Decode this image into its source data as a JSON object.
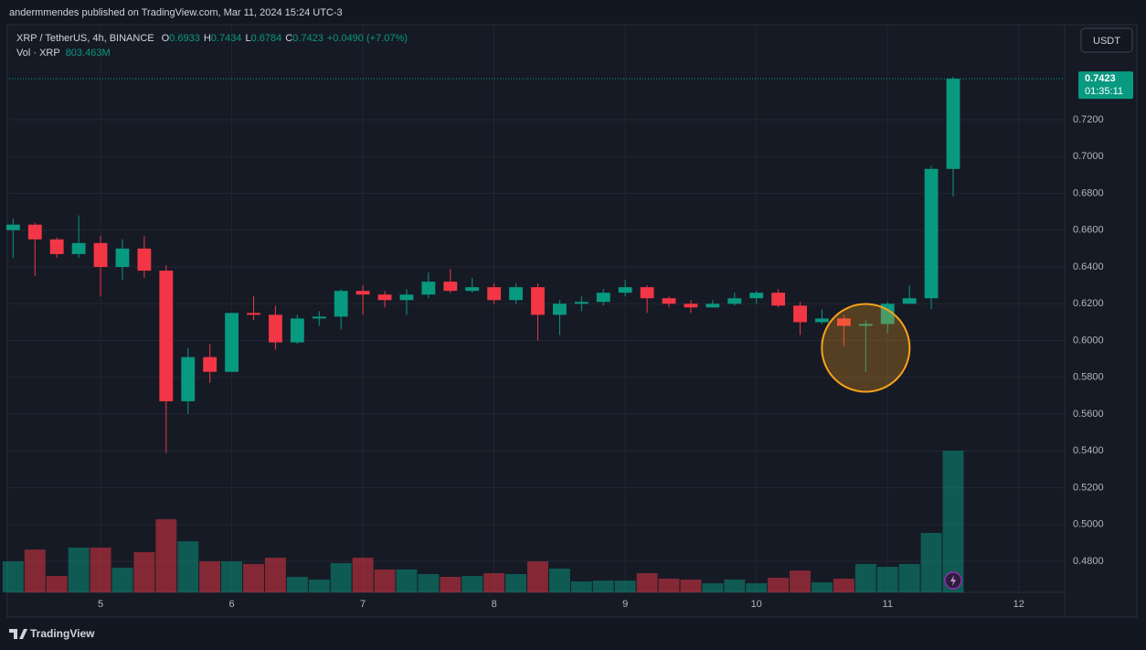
{
  "header": {
    "published": "andermmendes published on TradingView.com, Mar 11, 2024 15:24 UTC-3"
  },
  "footer": {
    "brand": "TradingView"
  },
  "currency_button": "USDT",
  "chart_data": {
    "type": "candlestick",
    "symbol": "XRP / TetherUS, 4h, BINANCE",
    "ohlc_legend": [
      {
        "label": "O",
        "value": "0.6933"
      },
      {
        "label": "H",
        "value": "0.7434"
      },
      {
        "label": "L",
        "value": "0.6784"
      },
      {
        "label": "C",
        "value": "0.7423"
      }
    ],
    "change": "+0.0490 (+7.07%)",
    "last_price": {
      "value": 0.7423,
      "label": "0.7423",
      "countdown": "01:35:11"
    },
    "up_color": "#089981",
    "down_color": "#f23645",
    "x": [
      4.3333,
      4.5,
      4.6667,
      4.8333,
      5,
      5.1667,
      5.3333,
      5.5,
      5.6667,
      5.8333,
      6,
      6.1667,
      6.3333,
      6.5,
      6.6667,
      6.8333,
      7,
      7.1667,
      7.3333,
      7.5,
      7.6667,
      7.8333,
      8,
      8.1667,
      8.3333,
      8.5,
      8.6667,
      8.8333,
      9,
      9.1667,
      9.3333,
      9.5,
      9.6667,
      9.8333,
      10,
      10.1667,
      10.3333,
      10.5,
      10.6667,
      10.8333,
      11,
      11.1667,
      11.3333,
      11.5
    ],
    "open": [
      0.66,
      0.663,
      0.655,
      0.647,
      0.653,
      0.64,
      0.65,
      0.638,
      0.567,
      0.591,
      0.583,
      0.615,
      0.614,
      0.599,
      0.612,
      0.613,
      0.627,
      0.625,
      0.622,
      0.625,
      0.632,
      0.627,
      0.629,
      0.622,
      0.629,
      0.614,
      0.62,
      0.621,
      0.626,
      0.629,
      0.623,
      0.62,
      0.618,
      0.62,
      0.623,
      0.626,
      0.619,
      0.61,
      0.612,
      0.608,
      0.609,
      0.62,
      0.623,
      0.6933
    ],
    "high": [
      0.666,
      0.664,
      0.656,
      0.668,
      0.657,
      0.655,
      0.657,
      0.641,
      0.596,
      0.598,
      0.615,
      0.624,
      0.619,
      0.614,
      0.616,
      0.628,
      0.63,
      0.627,
      0.628,
      0.637,
      0.639,
      0.634,
      0.631,
      0.631,
      0.631,
      0.622,
      0.624,
      0.628,
      0.633,
      0.63,
      0.624,
      0.622,
      0.622,
      0.626,
      0.627,
      0.628,
      0.621,
      0.617,
      0.614,
      0.611,
      0.621,
      0.63,
      0.695,
      0.7434
    ],
    "low": [
      0.645,
      0.635,
      0.645,
      0.645,
      0.624,
      0.633,
      0.634,
      0.539,
      0.56,
      0.577,
      0.583,
      0.611,
      0.595,
      0.598,
      0.608,
      0.606,
      0.614,
      0.618,
      0.614,
      0.623,
      0.626,
      0.626,
      0.62,
      0.62,
      0.6,
      0.603,
      0.616,
      0.619,
      0.624,
      0.615,
      0.618,
      0.615,
      0.618,
      0.619,
      0.62,
      0.618,
      0.603,
      0.609,
      0.597,
      0.583,
      0.604,
      0.62,
      0.617,
      0.6784
    ],
    "close": [
      0.663,
      0.655,
      0.647,
      0.653,
      0.64,
      0.65,
      0.638,
      0.567,
      0.591,
      0.583,
      0.615,
      0.614,
      0.599,
      0.612,
      0.613,
      0.627,
      0.625,
      0.622,
      0.625,
      0.632,
      0.627,
      0.629,
      0.622,
      0.629,
      0.614,
      0.62,
      0.621,
      0.626,
      0.629,
      0.623,
      0.62,
      0.618,
      0.62,
      0.623,
      0.626,
      0.619,
      0.61,
      0.612,
      0.608,
      0.609,
      0.62,
      0.623,
      0.6933,
      0.7423
    ],
    "volume": {
      "name": "Vol · XRP",
      "value_label": "803.463M",
      "values": [
        176,
        243,
        93,
        254,
        254,
        140,
        228,
        415,
        290,
        176,
        176,
        161,
        197,
        88,
        73,
        166,
        197,
        130,
        130,
        104,
        88,
        93,
        109,
        104,
        176,
        135,
        62,
        67,
        67,
        109,
        78,
        73,
        52,
        73,
        52,
        83,
        124,
        57,
        78,
        161,
        145,
        161,
        337,
        803.463
      ]
    },
    "xlim": [
      4.303,
      12.35
    ],
    "xticks": [
      5,
      6,
      7,
      8,
      9,
      10,
      11,
      12
    ],
    "ylim": [
      0.4631,
      0.7712
    ],
    "yticks": [
      {
        "value": 0.48,
        "label": "0.4800"
      },
      {
        "value": 0.5,
        "label": "0.5000"
      },
      {
        "value": 0.52,
        "label": "0.5200"
      },
      {
        "value": 0.54,
        "label": "0.5400"
      },
      {
        "value": 0.56,
        "label": "0.5600"
      },
      {
        "value": 0.58,
        "label": "0.5800"
      },
      {
        "value": 0.6,
        "label": "0.6000"
      },
      {
        "value": 0.62,
        "label": "0.6200"
      },
      {
        "value": 0.64,
        "label": "0.6400"
      },
      {
        "value": 0.66,
        "label": "0.6600"
      },
      {
        "value": 0.68,
        "label": "0.6800"
      },
      {
        "value": 0.7,
        "label": "0.7000"
      },
      {
        "value": 0.72,
        "label": "0.7200"
      }
    ],
    "grid": true
  }
}
